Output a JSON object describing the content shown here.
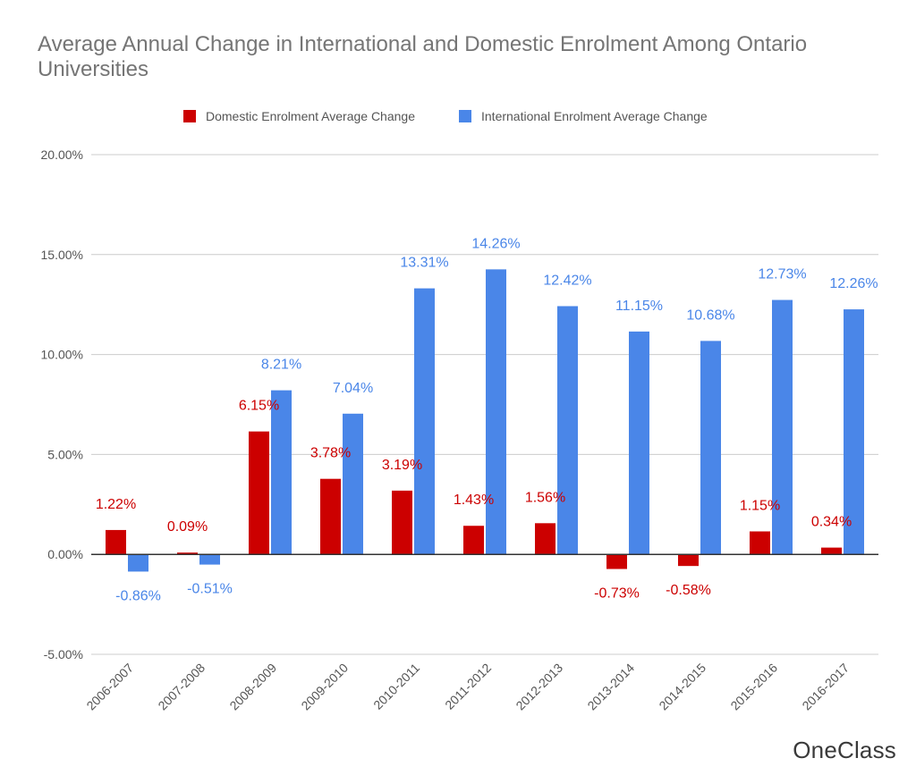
{
  "chart_data": {
    "type": "bar",
    "title": "Average Annual Change in International and Domestic Enrolment Among Ontario Universities",
    "xlabel": "",
    "ylabel": "",
    "categories": [
      "2006-2007",
      "2007-2008",
      "2008-2009",
      "2009-2010",
      "2010-2011",
      "2011-2012",
      "2012-2013",
      "2013-2014",
      "2014-2015",
      "2015-2016",
      "2016-2017"
    ],
    "series": [
      {
        "name": "Domestic Enrolment Average Change",
        "color": "#cc0000",
        "values": [
          1.22,
          0.09,
          6.15,
          3.78,
          3.19,
          1.43,
          1.56,
          -0.73,
          -0.58,
          1.15,
          0.34
        ],
        "labels": [
          "1.22%",
          "0.09%",
          "6.15%",
          "3.78%",
          "3.19%",
          "1.43%",
          "1.56%",
          "-0.73%",
          "-0.58%",
          "1.15%",
          "0.34%"
        ]
      },
      {
        "name": "International Enrolment Average Change",
        "color": "#4a86e8",
        "values": [
          -0.86,
          -0.51,
          8.21,
          7.04,
          13.31,
          14.26,
          12.42,
          11.15,
          10.68,
          12.73,
          12.26
        ],
        "labels": [
          "-0.86%",
          "-0.51%",
          "8.21%",
          "7.04%",
          "13.31%",
          "14.26%",
          "12.42%",
          "11.15%",
          "10.68%",
          "12.73%",
          "12.26%"
        ]
      }
    ],
    "ylim": [
      -5,
      20
    ],
    "yticks": [
      20,
      15,
      10,
      5,
      0,
      -5
    ],
    "ytick_labels": [
      "20.00%",
      "15.00%",
      "10.00%",
      "5.00%",
      "0.00%",
      "-5.00%"
    ],
    "grid": true,
    "legend": "top-center"
  },
  "brand": "OneClass"
}
